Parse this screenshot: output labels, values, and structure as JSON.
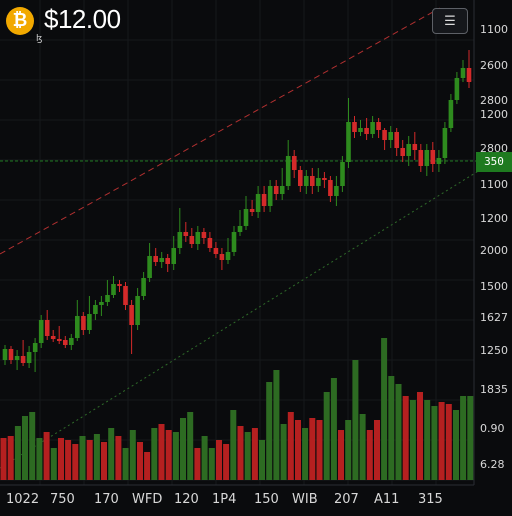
{
  "header": {
    "coin_symbol": "₿",
    "price": "$12.00",
    "sub_label": "ɮ",
    "menu_icon": "list-menu-icon"
  },
  "price_tag": "350",
  "y_axis_labels": [
    "1100",
    "2600",
    "2800",
    "1200",
    "2800",
    "1100",
    "1200",
    "2000",
    "1500",
    "1627",
    "1250",
    "1835",
    "0.90",
    "6.28"
  ],
  "x_axis_labels": [
    "1022",
    "750",
    "170",
    "WFD",
    "120",
    "1P4",
    "150",
    "WIB",
    "207",
    "A11",
    "315"
  ],
  "colors": {
    "background": "#0a0b0d",
    "up": "#2e8b1e",
    "down": "#d42a2a",
    "volume_up": "#2d6b22",
    "volume_down": "#b52020",
    "trendline_upper": "#b03030",
    "trendline_lower": "#2f6b2a",
    "price_line": "#1e7a1f"
  },
  "candles": [
    [
      360,
      349,
      365,
      345
    ],
    [
      349,
      360,
      364,
      346
    ],
    [
      360,
      356,
      370,
      350
    ],
    [
      356,
      363,
      366,
      340
    ],
    [
      363,
      352,
      368,
      346
    ],
    [
      352,
      343,
      372,
      338
    ],
    [
      343,
      320,
      348,
      315
    ],
    [
      320,
      336,
      340,
      310
    ],
    [
      336,
      339,
      342,
      330
    ],
    [
      339,
      340,
      344,
      326
    ],
    [
      340,
      345,
      348,
      336
    ],
    [
      345,
      338,
      350,
      334
    ],
    [
      338,
      316,
      341,
      300
    ],
    [
      316,
      330,
      335,
      312
    ],
    [
      330,
      314,
      334,
      296
    ],
    [
      314,
      305,
      320,
      300
    ],
    [
      305,
      302,
      316,
      296
    ],
    [
      302,
      295,
      306,
      280
    ],
    [
      295,
      284,
      298,
      276
    ],
    [
      284,
      286,
      292,
      280
    ],
    [
      286,
      305,
      310,
      282
    ],
    [
      305,
      325,
      354,
      300
    ],
    [
      325,
      296,
      330,
      288
    ],
    [
      296,
      278,
      300,
      272
    ],
    [
      278,
      256,
      282,
      243
    ],
    [
      256,
      262,
      266,
      248
    ],
    [
      262,
      258,
      268,
      252
    ],
    [
      258,
      264,
      272,
      254
    ],
    [
      264,
      248,
      270,
      236
    ],
    [
      248,
      232,
      254,
      208
    ],
    [
      232,
      236,
      242,
      222
    ],
    [
      236,
      244,
      248,
      228
    ],
    [
      244,
      232,
      250,
      226
    ],
    [
      232,
      238,
      244,
      228
    ],
    [
      238,
      248,
      252,
      232
    ],
    [
      248,
      254,
      258,
      242
    ],
    [
      254,
      260,
      270,
      248
    ],
    [
      260,
      252,
      264,
      238
    ],
    [
      252,
      232,
      256,
      226
    ],
    [
      232,
      226,
      236,
      210
    ],
    [
      226,
      209,
      230,
      196
    ],
    [
      209,
      212,
      216,
      200
    ],
    [
      212,
      194,
      218,
      186
    ],
    [
      194,
      206,
      212,
      186
    ],
    [
      206,
      186,
      212,
      180
    ],
    [
      186,
      194,
      200,
      180
    ],
    [
      194,
      186,
      200,
      168
    ],
    [
      186,
      156,
      190,
      140
    ],
    [
      156,
      170,
      178,
      150
    ],
    [
      170,
      186,
      192,
      166
    ],
    [
      186,
      176,
      194,
      170
    ],
    [
      176,
      186,
      194,
      168
    ],
    [
      186,
      178,
      192,
      168
    ],
    [
      178,
      180,
      188,
      172
    ],
    [
      180,
      196,
      202,
      176
    ],
    [
      196,
      186,
      206,
      176
    ],
    [
      186,
      162,
      192,
      156
    ],
    [
      162,
      122,
      168,
      98
    ],
    [
      122,
      132,
      138,
      116
    ],
    [
      132,
      128,
      136,
      120
    ],
    [
      128,
      134,
      140,
      118
    ],
    [
      134,
      122,
      138,
      116
    ],
    [
      122,
      130,
      138,
      118
    ],
    [
      130,
      140,
      150,
      128
    ],
    [
      140,
      132,
      148,
      126
    ],
    [
      132,
      148,
      156,
      128
    ],
    [
      148,
      156,
      162,
      140
    ],
    [
      156,
      144,
      166,
      136
    ],
    [
      144,
      150,
      160,
      132
    ],
    [
      150,
      166,
      172,
      144
    ],
    [
      166,
      150,
      176,
      144
    ],
    [
      150,
      164,
      172,
      142
    ],
    [
      164,
      158,
      172,
      150
    ],
    [
      158,
      128,
      164,
      122
    ],
    [
      128,
      100,
      132,
      94
    ],
    [
      100,
      78,
      104,
      72
    ],
    [
      78,
      68,
      82,
      60
    ],
    [
      68,
      82,
      88,
      50
    ]
  ],
  "volumes": [
    [
      438,
      "d"
    ],
    [
      436,
      "d"
    ],
    [
      426,
      "g"
    ],
    [
      416,
      "g"
    ],
    [
      412,
      "g"
    ],
    [
      438,
      "g"
    ],
    [
      432,
      "d"
    ],
    [
      448,
      "g"
    ],
    [
      438,
      "d"
    ],
    [
      440,
      "d"
    ],
    [
      444,
      "d"
    ],
    [
      436,
      "g"
    ],
    [
      440,
      "d"
    ],
    [
      434,
      "g"
    ],
    [
      442,
      "d"
    ],
    [
      428,
      "g"
    ],
    [
      436,
      "d"
    ],
    [
      448,
      "g"
    ],
    [
      430,
      "g"
    ],
    [
      442,
      "d"
    ],
    [
      452,
      "d"
    ],
    [
      428,
      "g"
    ],
    [
      424,
      "d"
    ],
    [
      430,
      "d"
    ],
    [
      432,
      "g"
    ],
    [
      418,
      "g"
    ],
    [
      412,
      "g"
    ],
    [
      448,
      "d"
    ],
    [
      436,
      "g"
    ],
    [
      448,
      "g"
    ],
    [
      440,
      "d"
    ],
    [
      444,
      "d"
    ],
    [
      410,
      "g"
    ],
    [
      426,
      "d"
    ],
    [
      432,
      "g"
    ],
    [
      428,
      "d"
    ],
    [
      440,
      "g"
    ],
    [
      382,
      "g"
    ],
    [
      370,
      "g"
    ],
    [
      424,
      "g"
    ],
    [
      412,
      "d"
    ],
    [
      420,
      "d"
    ],
    [
      428,
      "g"
    ],
    [
      418,
      "d"
    ],
    [
      420,
      "d"
    ],
    [
      392,
      "g"
    ],
    [
      378,
      "g"
    ],
    [
      430,
      "d"
    ],
    [
      420,
      "g"
    ],
    [
      360,
      "g"
    ],
    [
      414,
      "g"
    ],
    [
      430,
      "d"
    ],
    [
      420,
      "d"
    ],
    [
      338,
      "g"
    ],
    [
      376,
      "g"
    ],
    [
      384,
      "g"
    ],
    [
      396,
      "d"
    ],
    [
      400,
      "g"
    ],
    [
      392,
      "d"
    ],
    [
      400,
      "g"
    ],
    [
      406,
      "g"
    ],
    [
      402,
      "d"
    ],
    [
      404,
      "d"
    ],
    [
      410,
      "g"
    ],
    [
      396,
      "g"
    ],
    [
      396,
      "g"
    ]
  ]
}
